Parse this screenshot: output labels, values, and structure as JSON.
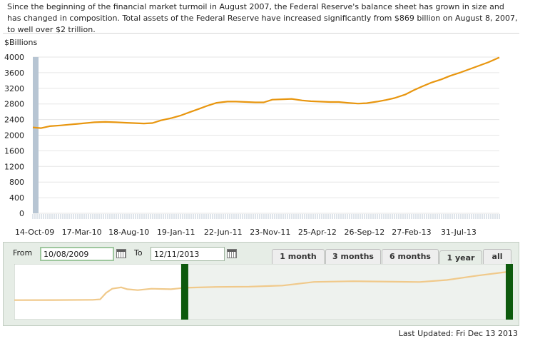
{
  "intro_text": "Since the beginning of the financial market turmoil in August 2007, the Federal Reserve's balance sheet has grown in size and has changed in composition. Total assets of the Federal Reserve have increased significantly from $869 billion on August 8, 2007, to well over $2 trillion.",
  "controls": {
    "from_label": "From",
    "from_value": "10/08/2009",
    "to_label": "To",
    "to_value": "12/11/2013",
    "tabs": [
      {
        "label": "1 month",
        "active": false
      },
      {
        "label": "3 months",
        "active": false
      },
      {
        "label": "6 months",
        "active": false
      },
      {
        "label": "1 year",
        "active": true
      },
      {
        "label": "all",
        "active": false
      }
    ]
  },
  "last_updated": "Last Updated: Fri Dec 13 2013",
  "colors": {
    "series_line": "#e8960f",
    "navigator_line": "#f0c98a",
    "handle": "#0d5a0d",
    "selected_bar": "#b7c5d3"
  },
  "chart_data": {
    "type": "line",
    "ylabel": "$Billions",
    "ylim": [
      0,
      4000
    ],
    "yticks": [
      0,
      400,
      800,
      1200,
      1600,
      2000,
      2400,
      2800,
      3200,
      3600,
      4000
    ],
    "xlim": [
      "2009-10-08",
      "2013-12-11"
    ],
    "xtick_labels": [
      "14-Oct-09",
      "17-Mar-10",
      "18-Aug-10",
      "19-Jan-11",
      "22-Jun-11",
      "23-Nov-11",
      "25-Apr-12",
      "26-Sep-12",
      "27-Feb-13",
      "31-Jul-13"
    ],
    "xtick_dates": [
      "2009-10-14",
      "2010-03-17",
      "2010-08-18",
      "2011-01-19",
      "2011-06-22",
      "2011-11-23",
      "2012-04-25",
      "2012-09-26",
      "2013-02-27",
      "2013-07-31"
    ],
    "grid": true,
    "series": [
      {
        "name": "",
        "points": [
          [
            "2009-10-08",
            2200
          ],
          [
            "2009-11-04",
            2180
          ],
          [
            "2009-12-02",
            2230
          ],
          [
            "2010-01-06",
            2250
          ],
          [
            "2010-02-03",
            2270
          ],
          [
            "2010-03-03",
            2290
          ],
          [
            "2010-03-31",
            2310
          ],
          [
            "2010-04-28",
            2330
          ],
          [
            "2010-06-02",
            2340
          ],
          [
            "2010-07-07",
            2330
          ],
          [
            "2010-08-04",
            2320
          ],
          [
            "2010-09-01",
            2310
          ],
          [
            "2010-10-06",
            2300
          ],
          [
            "2010-11-03",
            2310
          ],
          [
            "2010-12-01",
            2380
          ],
          [
            "2011-01-05",
            2440
          ],
          [
            "2011-02-02",
            2500
          ],
          [
            "2011-03-02",
            2580
          ],
          [
            "2011-04-06",
            2680
          ],
          [
            "2011-05-04",
            2760
          ],
          [
            "2011-06-01",
            2830
          ],
          [
            "2011-07-06",
            2860
          ],
          [
            "2011-08-03",
            2860
          ],
          [
            "2011-09-07",
            2850
          ],
          [
            "2011-10-05",
            2840
          ],
          [
            "2011-11-02",
            2840
          ],
          [
            "2011-11-30",
            2910
          ],
          [
            "2012-01-04",
            2920
          ],
          [
            "2012-02-01",
            2930
          ],
          [
            "2012-03-07",
            2890
          ],
          [
            "2012-04-04",
            2870
          ],
          [
            "2012-05-02",
            2860
          ],
          [
            "2012-06-06",
            2850
          ],
          [
            "2012-07-04",
            2850
          ],
          [
            "2012-08-01",
            2830
          ],
          [
            "2012-09-05",
            2810
          ],
          [
            "2012-10-03",
            2820
          ],
          [
            "2012-11-07",
            2860
          ],
          [
            "2012-12-05",
            2900
          ],
          [
            "2013-01-02",
            2950
          ],
          [
            "2013-02-06",
            3040
          ],
          [
            "2013-03-06",
            3150
          ],
          [
            "2013-04-03",
            3250
          ],
          [
            "2013-05-01",
            3340
          ],
          [
            "2013-06-05",
            3430
          ],
          [
            "2013-07-03",
            3520
          ],
          [
            "2013-08-07",
            3610
          ],
          [
            "2013-09-04",
            3690
          ],
          [
            "2013-10-02",
            3770
          ],
          [
            "2013-11-06",
            3870
          ],
          [
            "2013-12-11",
            3990
          ]
        ]
      }
    ],
    "navigator": {
      "xlim": [
        "2007-08-08",
        "2013-12-11"
      ],
      "selection": [
        "2009-10-08",
        "2013-12-11"
      ],
      "points": [
        [
          "2007-08-08",
          870
        ],
        [
          "2008-02-06",
          880
        ],
        [
          "2008-08-06",
          900
        ],
        [
          "2008-09-10",
          950
        ],
        [
          "2008-10-08",
          1650
        ],
        [
          "2008-11-05",
          2100
        ],
        [
          "2008-12-17",
          2250
        ],
        [
          "2009-01-14",
          2050
        ],
        [
          "2009-03-04",
          1950
        ],
        [
          "2009-05-06",
          2100
        ],
        [
          "2009-08-05",
          2050
        ],
        [
          "2009-10-08",
          2200
        ],
        [
          "2010-03-03",
          2290
        ],
        [
          "2010-08-04",
          2320
        ],
        [
          "2011-01-05",
          2440
        ],
        [
          "2011-06-01",
          2830
        ],
        [
          "2011-11-30",
          2910
        ],
        [
          "2012-06-06",
          2850
        ],
        [
          "2012-10-03",
          2820
        ],
        [
          "2013-02-06",
          3040
        ],
        [
          "2013-07-03",
          3520
        ],
        [
          "2013-12-11",
          3990
        ]
      ]
    }
  }
}
